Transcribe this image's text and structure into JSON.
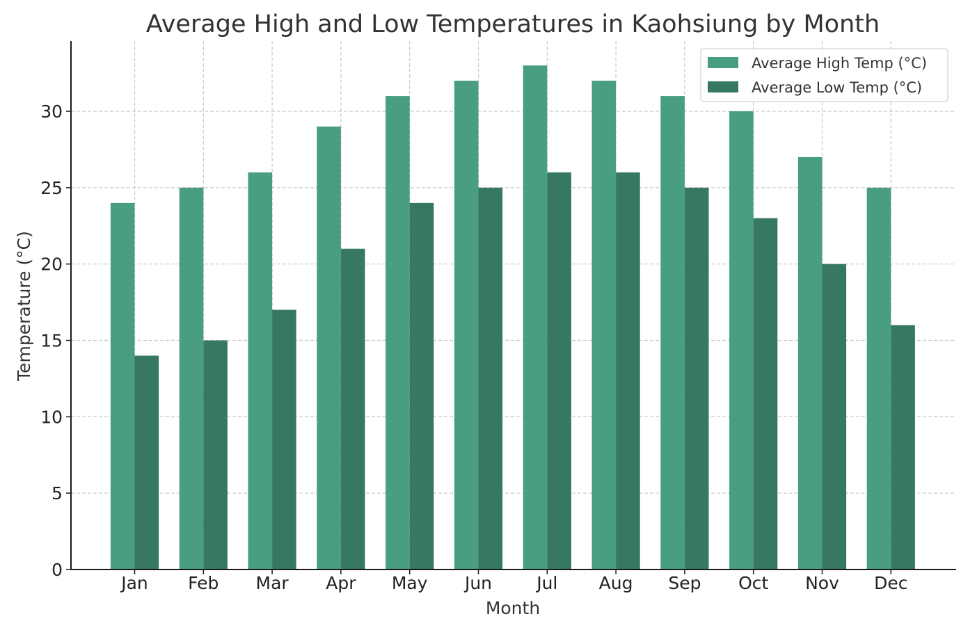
{
  "chart_data": {
    "type": "bar",
    "title": "Average High and Low Temperatures in Kaohsiung by Month",
    "xlabel": "Month",
    "ylabel": "Temperature (°C)",
    "categories": [
      "Jan",
      "Feb",
      "Mar",
      "Apr",
      "May",
      "Jun",
      "Jul",
      "Aug",
      "Sep",
      "Oct",
      "Nov",
      "Dec"
    ],
    "series": [
      {
        "name": "Average High Temp (°C)",
        "color": "#4a9e80",
        "values": [
          24,
          25,
          26,
          29,
          31,
          32,
          33,
          32,
          31,
          30,
          27,
          25
        ]
      },
      {
        "name": "Average Low Temp (°C)",
        "color": "#377862",
        "values": [
          14,
          15,
          17,
          21,
          24,
          25,
          26,
          26,
          25,
          23,
          20,
          16
        ]
      }
    ],
    "ylim": [
      0,
      34.6
    ],
    "yticks": [
      0,
      5,
      10,
      15,
      20,
      25,
      30
    ],
    "grid": true,
    "legend_position": "top-right"
  }
}
